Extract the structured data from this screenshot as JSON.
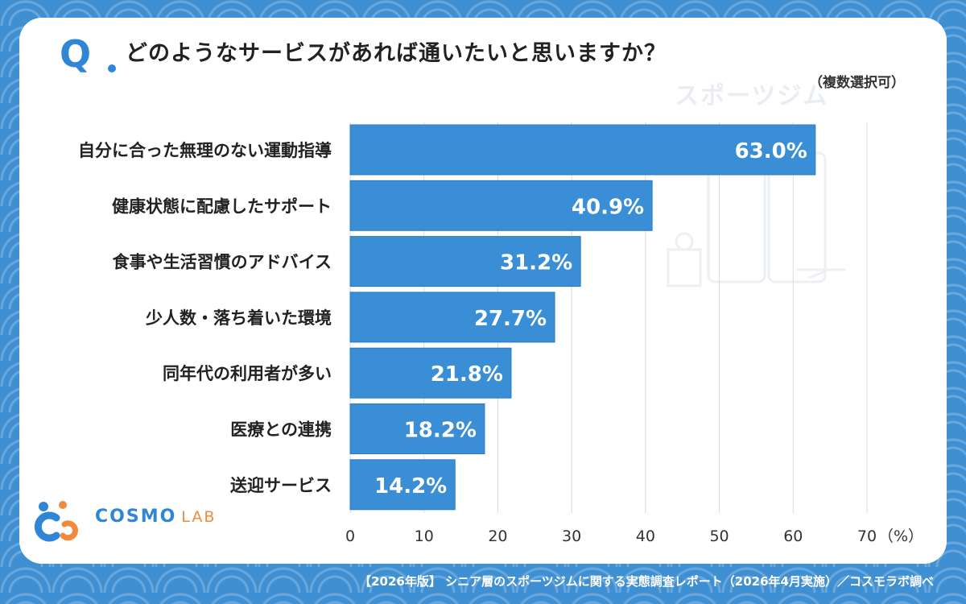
{
  "header": {
    "q_mark": "Q.",
    "question": "どのようなサービスがあれば通いたいと思いますか？",
    "note": "（複数選択可）",
    "watermark": "スポーツジム"
  },
  "logo": {
    "word1": "COSMO",
    "word2": "LAB"
  },
  "footer": {
    "text": "【2026年版】 シニア層のスポーツジムに関する実態調査レポート（2026年4月実施）／コスモラボ調べ"
  },
  "colors": {
    "bar": "#3a8ed6",
    "bar_edge": "#2a7cc4",
    "grid": "#dcdcdc",
    "brand": "#2f86d6",
    "accent": "#f08a3c"
  },
  "chart_data": {
    "type": "bar",
    "orientation": "horizontal",
    "categories": [
      "自分に合った無理のない運動指導",
      "健康状態に配慮したサポート",
      "食事や生活習慣のアドバイス",
      "少人数・落ち着いた環境",
      "同年代の利用者が多い",
      "医療との連携",
      "送迎サービス"
    ],
    "values": [
      63.0,
      40.9,
      31.2,
      27.7,
      21.8,
      18.2,
      14.2
    ],
    "value_labels": [
      "63.0%",
      "40.9%",
      "31.2%",
      "27.7%",
      "21.8%",
      "18.2%",
      "14.2%"
    ],
    "xlim": [
      0,
      70
    ],
    "xticks": [
      0,
      10,
      20,
      30,
      40,
      50,
      60,
      70
    ],
    "xtick_labels": [
      "0",
      "10",
      "20",
      "30",
      "40",
      "50",
      "60",
      "70"
    ],
    "x_unit": "（%）",
    "grid": true
  }
}
